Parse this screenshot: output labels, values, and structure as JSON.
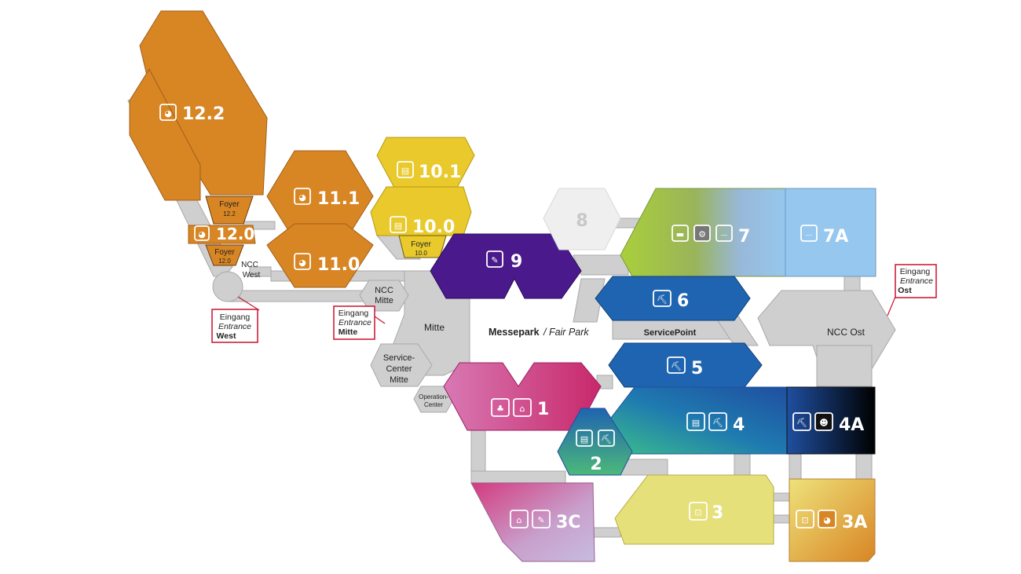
{
  "colors": {
    "orange": "#d88524",
    "yellow": "#e9c92b",
    "purple": "#4a1a8c",
    "blue": "#1f64b0",
    "lightblue": "#96c7ee",
    "green": "#9dcc3a",
    "pink": "#c84b8e",
    "teal": "#2a9d8f",
    "paleyellow": "#e6e07a",
    "grey": "#cfcfcf",
    "entrance_red": "#c8102e"
  },
  "halls": {
    "h12_2": {
      "label": "12.2",
      "icon": "helmet-icon"
    },
    "h12_0": {
      "label": "12.0",
      "icon": "helmet-icon"
    },
    "h11_1": {
      "label": "11.1",
      "icon": "helmet-icon"
    },
    "h11_0": {
      "label": "11.0",
      "icon": "helmet-icon"
    },
    "h10_1": {
      "label": "10.1",
      "icon": "book-icon"
    },
    "h10_0": {
      "label": "10.0",
      "icon": "book-icon"
    },
    "h9": {
      "label": "9",
      "icon": "craft-icon"
    },
    "h8": {
      "label": "8"
    },
    "h7": {
      "label": "7",
      "icons": [
        "boat-icon",
        "gear-icon",
        "skateboard-icon"
      ]
    },
    "h7A": {
      "label": "7A",
      "icon": "skateboard-icon"
    },
    "h6": {
      "label": "6",
      "icon": "excavator-icon"
    },
    "h5": {
      "label": "5",
      "icon": "excavator-icon"
    },
    "h4": {
      "label": "4",
      "icons": [
        "book-icon",
        "excavator-icon"
      ]
    },
    "h4A": {
      "label": "4A",
      "icons": [
        "excavator-icon",
        "figure-icon"
      ]
    },
    "h1": {
      "label": "1",
      "icons": [
        "teddy-icon",
        "bag-icon"
      ]
    },
    "h2": {
      "label": "2",
      "icons": [
        "book-icon",
        "excavator-icon"
      ]
    },
    "h3": {
      "label": "3",
      "icon": "bed-icon"
    },
    "h3A": {
      "label": "3A",
      "icons": [
        "bed-icon",
        "helmet-icon"
      ]
    },
    "h3C": {
      "label": "3C",
      "icons": [
        "bag-icon",
        "craft-icon"
      ]
    }
  },
  "areas": {
    "foyer_12_2": {
      "line1": "Foyer",
      "line2": "12.2"
    },
    "foyer_12_0": {
      "line1": "Foyer",
      "line2": "12.0"
    },
    "foyer_10_0": {
      "line1": "Foyer",
      "line2": "10.0"
    },
    "ncc_west": {
      "line1": "NCC",
      "line2": "West"
    },
    "ncc_mitte": {
      "line1": "NCC",
      "line2": "Mitte"
    },
    "mitte": "Mitte",
    "service_center": {
      "line1": "Service-",
      "line2": "Center",
      "line3": "Mitte"
    },
    "operation_center": {
      "line1": "Operation-",
      "line2": "Center"
    },
    "messepark": "Messepark",
    "fair_park": "/ Fair Park",
    "servicepoint": "ServicePoint",
    "ncc_ost": "NCC Ost"
  },
  "entrances": {
    "west": {
      "line1": "Eingang",
      "line2": "Entrance",
      "line3": "West"
    },
    "mitte": {
      "line1": "Eingang",
      "line2": "Entrance",
      "line3": "Mitte"
    },
    "ost": {
      "line1": "Eingang",
      "line2": "Entrance",
      "line3": "Ost"
    }
  }
}
